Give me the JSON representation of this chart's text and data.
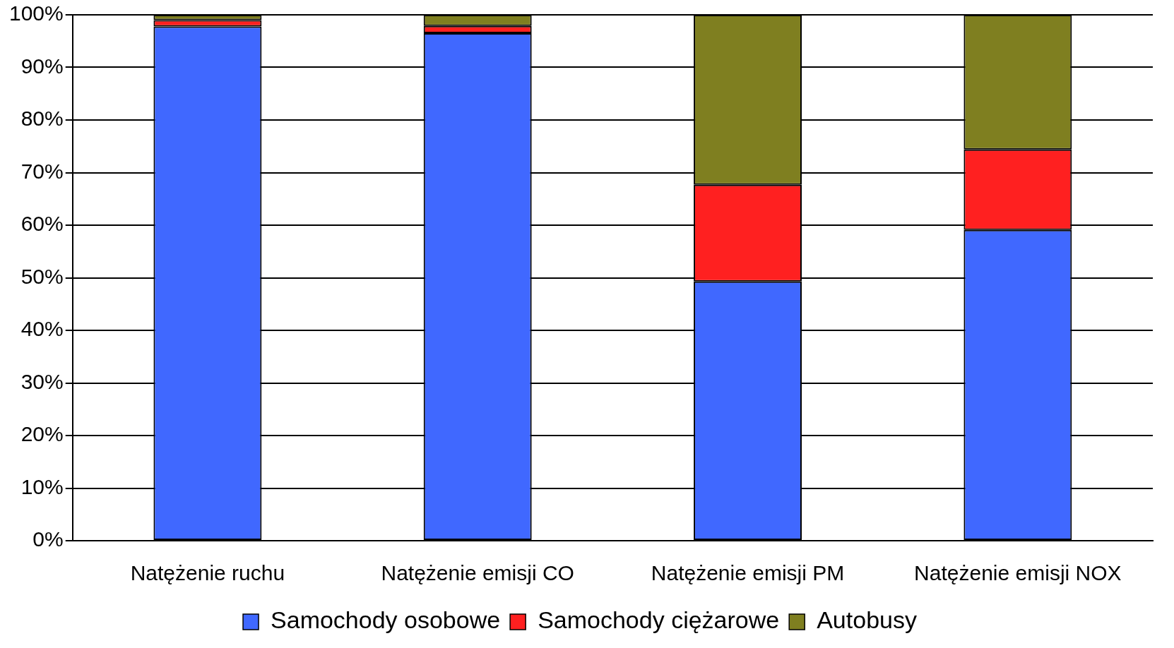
{
  "chart_data": {
    "type": "bar",
    "stacked": true,
    "categories": [
      "Natężenie ruchu",
      "Natężenie emisji CO",
      "Natężenie emisji PM",
      "Natężenie emisji NOX"
    ],
    "series": [
      {
        "name": "Samochody osobowe",
        "color": "#4068ff",
        "values": [
          97.8,
          96.5,
          49.3,
          59.1
        ]
      },
      {
        "name": "Samochody ciężarowe",
        "color": "#ff2020",
        "values": [
          1.2,
          1.4,
          18.4,
          15.3
        ]
      },
      {
        "name": "Autobusy",
        "color": "#7f7f20",
        "values": [
          1.0,
          2.1,
          32.3,
          25.6
        ]
      }
    ],
    "ylim": [
      0,
      100
    ],
    "yticks": [
      {
        "value": 0,
        "label": "0%"
      },
      {
        "value": 10,
        "label": "10%"
      },
      {
        "value": 20,
        "label": "20%"
      },
      {
        "value": 30,
        "label": "30%"
      },
      {
        "value": 40,
        "label": "40%"
      },
      {
        "value": 50,
        "label": "50%"
      },
      {
        "value": 60,
        "label": "60%"
      },
      {
        "value": 70,
        "label": "70%"
      },
      {
        "value": 80,
        "label": "80%"
      },
      {
        "value": 90,
        "label": "90%"
      },
      {
        "value": 100,
        "label": "100%"
      }
    ],
    "grid": "y",
    "legend": "bottom"
  }
}
